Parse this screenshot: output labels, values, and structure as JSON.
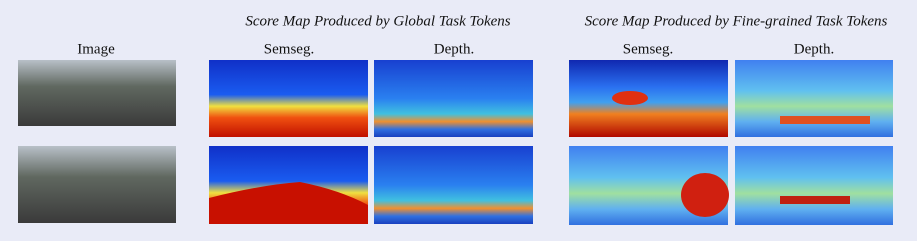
{
  "image_column": {
    "title": "Image"
  },
  "global": {
    "title": "Score Map Produced by Global Task Tokens",
    "columns": [
      "Semseg.",
      "Depth."
    ]
  },
  "fine": {
    "title": "Score Map Produced by Fine-grained Task Tokens",
    "columns": [
      "Semseg.",
      "Depth."
    ]
  }
}
